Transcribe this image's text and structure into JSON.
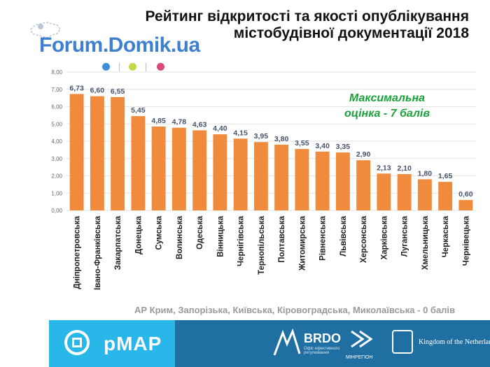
{
  "title_line1": "Рейтинг відкритості та якості опублікування",
  "title_line2": "містобудівної документації 2018",
  "watermark": "Forum.Domik.ua",
  "note_line1": "Максимальна",
  "note_line2": "оцінка - 7 балів",
  "footnote": "АР Крим, Запорізька, Київська, Кіровоградська, Миколаївська - 0 балів",
  "colors": {
    "bar": "#f08a3c",
    "note": "#1aa23a",
    "pmap": "#29b6e8",
    "sponsors": "#1f6fa3",
    "dots": [
      "#3f8fd8",
      "#c8d64a",
      "#d84a7a"
    ]
  },
  "footer": {
    "pmap_label": "pMAP",
    "brdo_label": "BRDO",
    "brdo_sub": "Офіс ефективного регулювання",
    "minregion_label": "МІНРЕГІОН",
    "nl_label": "Kingdom of the Netherlands"
  },
  "chart_data": {
    "type": "bar",
    "categories": [
      "Дніпропетровська",
      "Івано-Франківська",
      "Закарпатська",
      "Донецька",
      "Сумська",
      "Волинська",
      "Одеська",
      "Вінницька",
      "Чернігівська",
      "Тернопільська",
      "Полтавська",
      "Житомирська",
      "Рівненська",
      "Львівська",
      "Херсонська",
      "Харківська",
      "Луганська",
      "Хмельницька",
      "Черкаська",
      "Чернівецька"
    ],
    "values": [
      6.73,
      6.6,
      6.55,
      5.45,
      4.85,
      4.78,
      4.63,
      4.4,
      4.15,
      3.95,
      3.8,
      3.55,
      3.4,
      3.35,
      2.9,
      2.13,
      2.1,
      1.8,
      1.65,
      0.6
    ],
    "value_labels": [
      "6,73",
      "6,60",
      "6,55",
      "5,45",
      "4,85",
      "4,78",
      "4,63",
      "4,40",
      "4,15",
      "3,95",
      "3,80",
      "3,55",
      "3,40",
      "3,35",
      "2,90",
      "2,13",
      "2,10",
      "1,80",
      "1,65",
      "0,60"
    ],
    "yticks": [
      "0,00",
      "1,00",
      "2,00",
      "3,00",
      "4,00",
      "5,00",
      "6,00",
      "7,00",
      "8,00"
    ],
    "ylim": [
      0,
      8
    ],
    "grid": true
  }
}
